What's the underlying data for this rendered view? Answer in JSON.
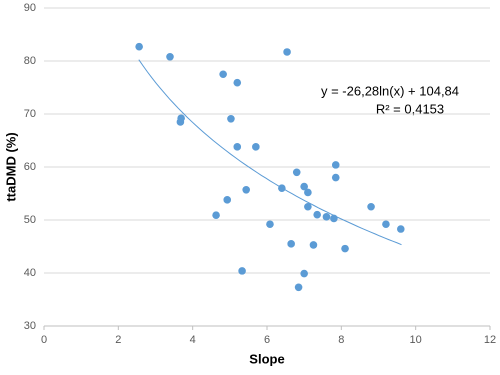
{
  "chart_data": {
    "type": "scatter",
    "x_label": "Slope",
    "y_label": "ttaDMD (%)",
    "x": [
      2.56,
      3.39,
      3.67,
      3.69,
      4.82,
      5.2,
      5.03,
      5.2,
      5.7,
      6.54,
      4.93,
      4.63,
      5.44,
      6.08,
      5.33,
      6.4,
      6.8,
      7.0,
      7.1,
      7.1,
      7.35,
      7.6,
      7.8,
      7.85,
      7.85,
      8.8,
      9.2,
      9.6,
      6.65,
      7.25,
      8.1,
      7.0,
      6.85
    ],
    "values": [
      82.7,
      80.8,
      68.5,
      69.2,
      77.5,
      75.9,
      69.1,
      63.8,
      63.8,
      81.7,
      53.8,
      50.9,
      55.7,
      49.2,
      40.4,
      56.0,
      59.0,
      56.3,
      55.2,
      52.5,
      51.0,
      50.6,
      50.3,
      60.4,
      58.0,
      52.5,
      49.2,
      48.3,
      45.5,
      45.3,
      44.6,
      39.9,
      37.3
    ],
    "color": "#5b9bd5",
    "xlim": [
      0,
      12
    ],
    "xticks": [
      0,
      2,
      4,
      6,
      8,
      10,
      12
    ],
    "ylim": [
      30,
      90
    ],
    "yticks": [
      30,
      40,
      50,
      60,
      70,
      80,
      90
    ],
    "grid": true,
    "trendline": {
      "equation": "y = -26,28ln(x) + 104,84",
      "r_squared": "R² = 0,4153",
      "slope": -26.28,
      "intercept": 104.84,
      "x_range": [
        2.55,
        9.62
      ],
      "color": "#5b9bd5"
    }
  }
}
